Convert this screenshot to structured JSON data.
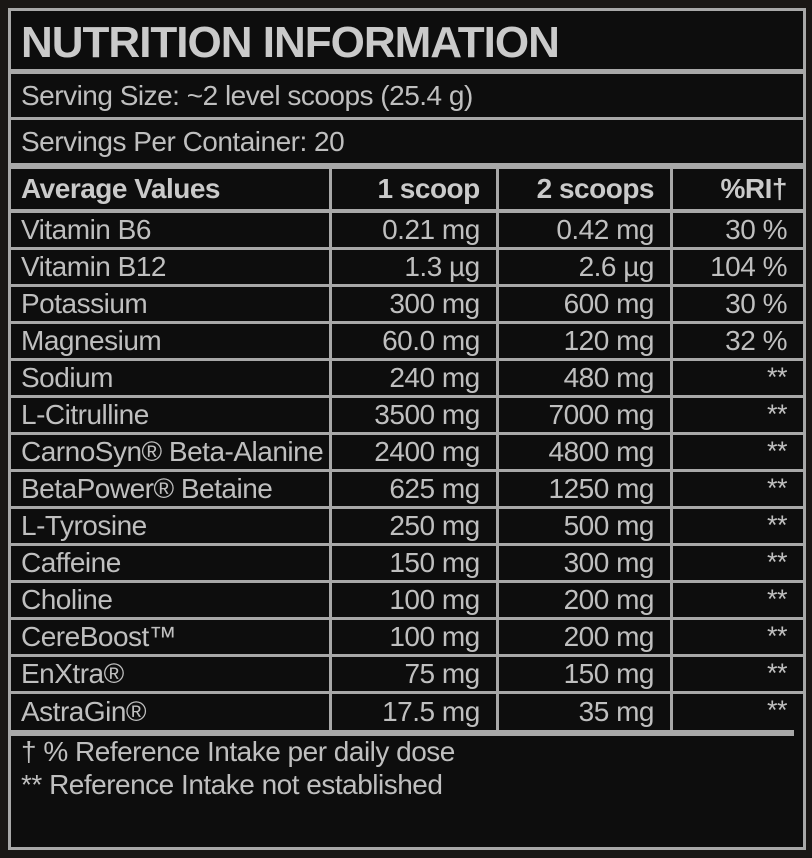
{
  "label": {
    "title": "NUTRITION INFORMATION",
    "serving_size": "Serving Size: ~2 level scoops (25.4 g)",
    "servings_per_container": "Servings Per Container: 20"
  },
  "table": {
    "headers": [
      "Average Values",
      "1 scoop",
      "2 scoops",
      "%RI†"
    ],
    "rows": [
      {
        "name": "Vitamin B6",
        "one_scoop": "0.21 mg",
        "two_scoops": "0.42 mg",
        "ri": "30 %"
      },
      {
        "name": "Vitamin B12",
        "one_scoop": "1.3 µg",
        "two_scoops": "2.6 µg",
        "ri": "104 %"
      },
      {
        "name": "Potassium",
        "one_scoop": "300 mg",
        "two_scoops": "600 mg",
        "ri": "30 %"
      },
      {
        "name": "Magnesium",
        "one_scoop": "60.0 mg",
        "two_scoops": "120 mg",
        "ri": "32 %"
      },
      {
        "name": "Sodium",
        "one_scoop": "240 mg",
        "two_scoops": "480 mg",
        "ri": "**"
      },
      {
        "name": "L-Citrulline",
        "one_scoop": "3500 mg",
        "two_scoops": "7000 mg",
        "ri": "**"
      },
      {
        "name": "CarnoSyn® Beta-Alanine",
        "one_scoop": "2400 mg",
        "two_scoops": "4800 mg",
        "ri": "**"
      },
      {
        "name": "BetaPower® Betaine",
        "one_scoop": "625 mg",
        "two_scoops": "1250 mg",
        "ri": "**"
      },
      {
        "name": "L-Tyrosine",
        "one_scoop": "250 mg",
        "two_scoops": "500 mg",
        "ri": "**"
      },
      {
        "name": "Caffeine",
        "one_scoop": "150 mg",
        "two_scoops": "300 mg",
        "ri": "**"
      },
      {
        "name": "Choline",
        "one_scoop": "100 mg",
        "two_scoops": "200 mg",
        "ri": "**"
      },
      {
        "name": "CereBoost™",
        "one_scoop": "100 mg",
        "two_scoops": "200 mg",
        "ri": "**"
      },
      {
        "name": "EnXtra®",
        "one_scoop": "75 mg",
        "two_scoops": "150 mg",
        "ri": "**"
      },
      {
        "name": "AstraGin®",
        "one_scoop": "17.5 mg",
        "two_scoops": "35 mg",
        "ri": "**"
      }
    ]
  },
  "footnotes": [
    "† % Reference Intake per daily dose",
    "** Reference Intake not established"
  ],
  "colors": {
    "page_background": "#1a1715",
    "label_background": "#0d0d0d",
    "line": "#a8a8a8",
    "text": "#bfbfbf",
    "text_bright": "#cacaca"
  }
}
